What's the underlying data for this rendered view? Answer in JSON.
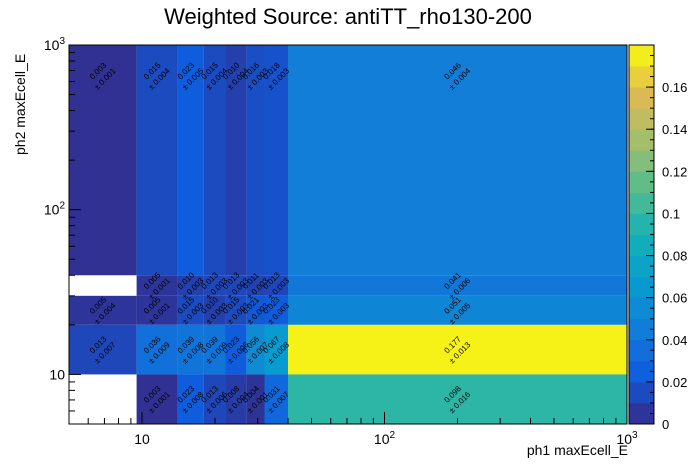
{
  "chart_data": {
    "type": "heatmap",
    "title": "Weighted Source: antiTT_rho130-200",
    "xlabel": "ph1 maxEcell_E",
    "ylabel": "ph2 maxEcell_E",
    "x_scale": "log",
    "y_scale": "log",
    "xlim": [
      5,
      1000
    ],
    "ylim": [
      5,
      1000
    ],
    "x_ticks": [
      {
        "value": 10,
        "label": "10"
      },
      {
        "value": 100,
        "label": "10^2"
      },
      {
        "value": 1000,
        "label": "10^3"
      }
    ],
    "y_ticks": [
      {
        "value": 10,
        "label": "10"
      },
      {
        "value": 100,
        "label": "10^2"
      },
      {
        "value": 1000,
        "label": "10^3"
      }
    ],
    "x_edges": [
      5,
      9.5,
      14,
      18,
      22,
      27,
      32,
      40,
      1000
    ],
    "y_edges": [
      5,
      10,
      20,
      30,
      40,
      1000
    ],
    "colorbar": {
      "min": 0,
      "max": 0.18,
      "ticks": [
        0,
        0.02,
        0.04,
        0.06,
        0.08,
        0.1,
        0.12,
        0.14,
        0.16
      ],
      "tick_labels": [
        "0",
        "0.02",
        "0.04",
        "0.06",
        "0.08",
        "0.1",
        "0.12",
        "0.14",
        "0.16"
      ]
    },
    "cells": [
      {
        "x": 0,
        "y": 4,
        "value": 0.003,
        "error": 0.001,
        "label": "0.003",
        "err_label": "± 0.001"
      },
      {
        "x": 1,
        "y": 4,
        "value": 0.015,
        "error": 0.004,
        "label": "0.015",
        "err_label": "± 0.004"
      },
      {
        "x": 2,
        "y": 4,
        "value": 0.023,
        "error": 0.005,
        "label": "0.023",
        "err_label": "± 0.005"
      },
      {
        "x": 3,
        "y": 4,
        "value": 0.015,
        "error": 0.004,
        "label": "0.015",
        "err_label": "± 0.004"
      },
      {
        "x": 4,
        "y": 4,
        "value": 0.01,
        "error": 0.004,
        "label": "0.010",
        "err_label": "± 0.004"
      },
      {
        "x": 5,
        "y": 4,
        "value": 0.016,
        "error": 0.003,
        "label": "0.016",
        "err_label": "± 0.003"
      },
      {
        "x": 6,
        "y": 4,
        "value": 0.018,
        "error": 0.003,
        "label": "0.018",
        "err_label": "± 0.003"
      },
      {
        "x": 7,
        "y": 4,
        "value": 0.046,
        "error": 0.004,
        "label": "0.046",
        "err_label": "± 0.004"
      },
      {
        "x": 1,
        "y": 3,
        "value": 0.005,
        "error": 0.001,
        "label": "0.005",
        "err_label": "± 0.001"
      },
      {
        "x": 2,
        "y": 3,
        "value": 0.01,
        "error": 0.003,
        "label": "0.010",
        "err_label": "± 0.003"
      },
      {
        "x": 3,
        "y": 3,
        "value": 0.013,
        "error": 0.003,
        "label": "0.013",
        "err_label": "± 0.003"
      },
      {
        "x": 4,
        "y": 3,
        "value": 0.013,
        "error": 0.003,
        "label": "0.013",
        "err_label": "± 0.003"
      },
      {
        "x": 5,
        "y": 3,
        "value": 0.011,
        "error": 0.003,
        "label": "0.011",
        "err_label": "± 0.003"
      },
      {
        "x": 6,
        "y": 3,
        "value": 0.013,
        "error": 0.003,
        "label": "0.013",
        "err_label": "± 0.003"
      },
      {
        "x": 7,
        "y": 3,
        "value": 0.041,
        "error": 0.006,
        "label": "0.041",
        "err_label": "± 0.006"
      },
      {
        "x": 0,
        "y": 2,
        "value": 0.005,
        "error": 0.004,
        "label": "0.005",
        "err_label": "± 0.004"
      },
      {
        "x": 1,
        "y": 2,
        "value": 0.005,
        "error": 0.001,
        "label": "0.005",
        "err_label": "± 0.001"
      },
      {
        "x": 2,
        "y": 2,
        "value": 0.015,
        "error": 0.003,
        "label": "0.015",
        "err_label": "± 0.003"
      },
      {
        "x": 3,
        "y": 2,
        "value": 0.01,
        "error": 0.003,
        "label": "0.010",
        "err_label": "± 0.003"
      },
      {
        "x": 4,
        "y": 2,
        "value": 0.015,
        "error": 0.003,
        "label": "0.015",
        "err_label": "± 0.003"
      },
      {
        "x": 5,
        "y": 2,
        "value": 0.021,
        "error": 0.003,
        "label": "0.021",
        "err_label": "± 0.003"
      },
      {
        "x": 6,
        "y": 2,
        "value": 0.023,
        "error": 0.003,
        "label": "0.023",
        "err_label": "± 0.003"
      },
      {
        "x": 7,
        "y": 2,
        "value": 0.051,
        "error": 0.005,
        "label": "0.051",
        "err_label": "± 0.005"
      },
      {
        "x": 0,
        "y": 1,
        "value": 0.013,
        "error": 0.007,
        "label": "0.013",
        "err_label": "± 0.007"
      },
      {
        "x": 1,
        "y": 1,
        "value": 0.036,
        "error": 0.009,
        "label": "0.036",
        "err_label": "± 0.009"
      },
      {
        "x": 2,
        "y": 1,
        "value": 0.039,
        "error": 0.008,
        "label": "0.039",
        "err_label": "± 0.008"
      },
      {
        "x": 3,
        "y": 1,
        "value": 0.039,
        "error": 0.009,
        "label": "0.039",
        "err_label": "± 0.009"
      },
      {
        "x": 4,
        "y": 1,
        "value": 0.023,
        "error": 0.006,
        "label": "0.023",
        "err_label": "± 0.006"
      },
      {
        "x": 5,
        "y": 1,
        "value": 0.056,
        "error": 0.007,
        "label": "0.056",
        "err_label": "± 0.007"
      },
      {
        "x": 6,
        "y": 1,
        "value": 0.067,
        "error": 0.008,
        "label": "0.067",
        "err_label": "± 0.008"
      },
      {
        "x": 7,
        "y": 1,
        "value": 0.177,
        "error": 0.013,
        "label": "0.177",
        "err_label": "± 0.013"
      },
      {
        "x": 1,
        "y": 0,
        "value": 0.003,
        "error": 0.001,
        "label": "0.003",
        "err_label": "± 0.001"
      },
      {
        "x": 2,
        "y": 0,
        "value": 0.023,
        "error": 0.008,
        "label": "0.023",
        "err_label": "± 0.008"
      },
      {
        "x": 3,
        "y": 0,
        "value": 0.013,
        "error": 0.006,
        "label": "0.013",
        "err_label": "± 0.006"
      },
      {
        "x": 4,
        "y": 0,
        "value": 0.008,
        "error": 0.004,
        "label": "0.008",
        "err_label": "± 0.004"
      },
      {
        "x": 5,
        "y": 0,
        "value": 0.004,
        "error": 0.001,
        "label": "0.004",
        "err_label": "± 0.001"
      },
      {
        "x": 6,
        "y": 0,
        "value": 0.031,
        "error": 0.007,
        "label": "0.031",
        "err_label": "± 0.007"
      },
      {
        "x": 7,
        "y": 0,
        "value": 0.098,
        "error": 0.016,
        "label": "0.098",
        "err_label": "± 0.016"
      }
    ],
    "grid": false
  }
}
